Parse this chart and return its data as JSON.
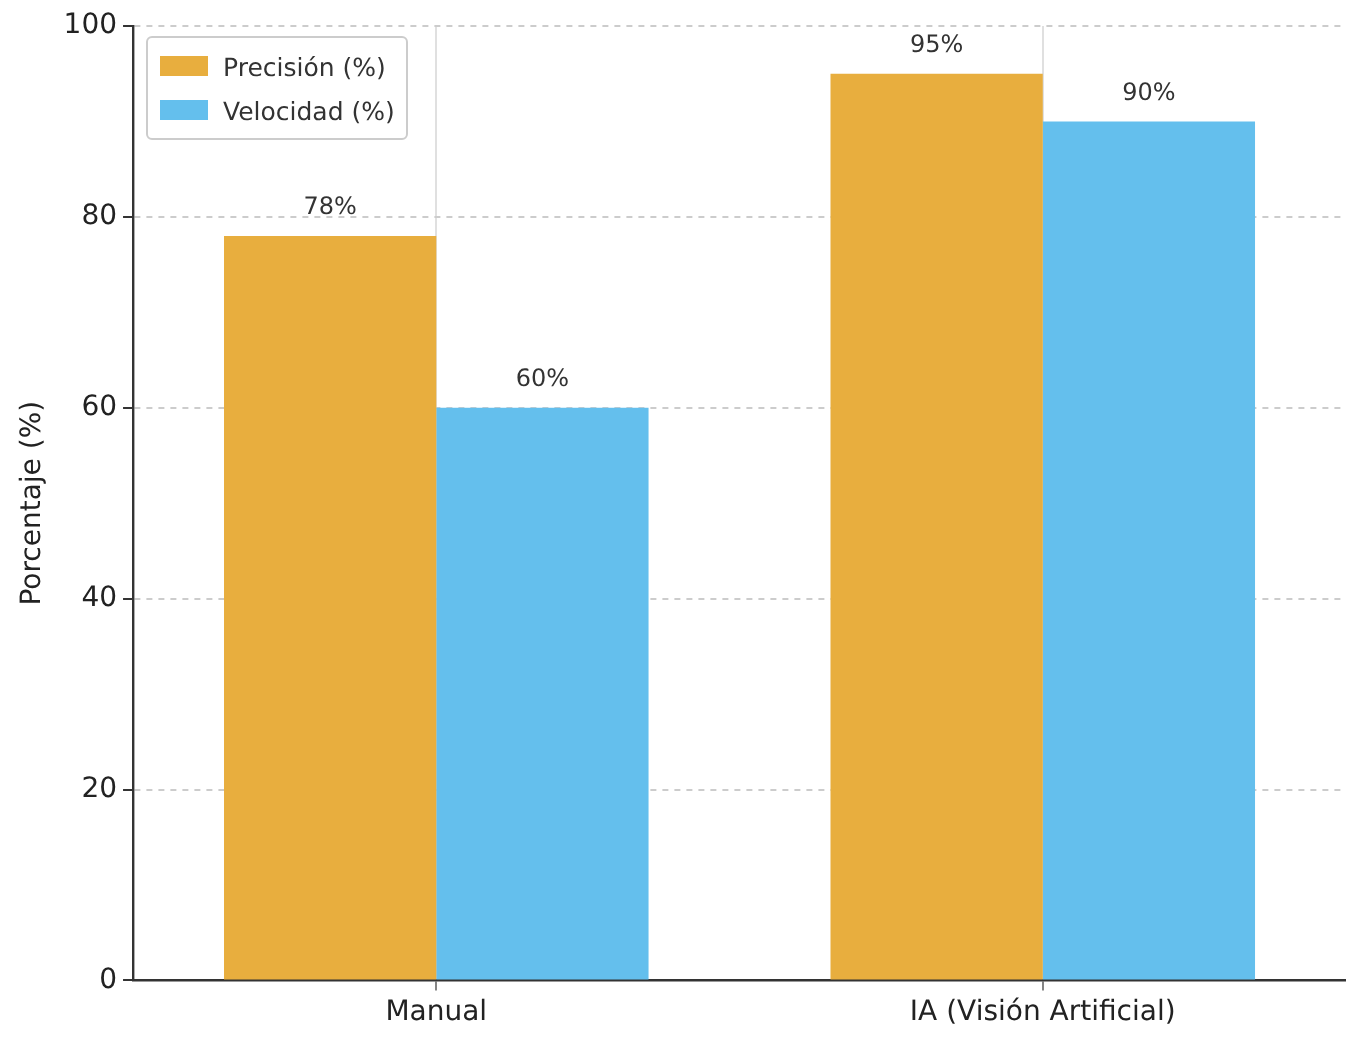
{
  "chart_data": {
    "type": "bar",
    "ylabel": "Porcentaje (%)",
    "categories": [
      "Manual",
      "IA (Visión Artificial)"
    ],
    "series": [
      {
        "name": "Precisión (%)",
        "color": "#e8ae3e",
        "values": [
          78,
          95
        ]
      },
      {
        "name": "Velocidad (%)",
        "color": "#64bfed",
        "values": [
          60,
          90
        ]
      }
    ],
    "value_labels": [
      [
        "78%",
        "95%"
      ],
      [
        "60%",
        "90%"
      ]
    ],
    "ylim": [
      0,
      100
    ],
    "yticks": [
      0,
      20,
      40,
      60,
      80,
      100
    ],
    "grid": true,
    "legend": "top left"
  }
}
